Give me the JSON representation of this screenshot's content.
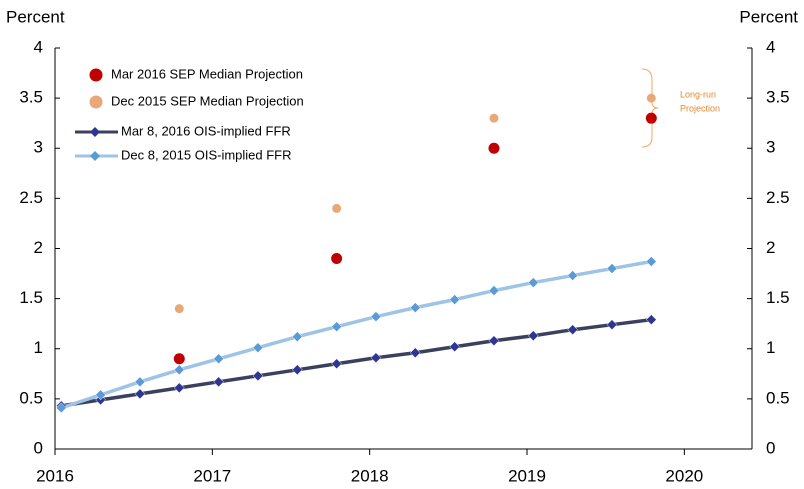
{
  "chart_data": {
    "type": "line",
    "ylabel": "Percent",
    "y2label": "Percent",
    "xlim": [
      2016,
      2020.43
    ],
    "xticks": [
      2016,
      2017,
      2018,
      2019,
      2020
    ],
    "ylim": [
      0,
      4
    ],
    "yticks": [
      0,
      0.5,
      1,
      1.5,
      2,
      2.5,
      3,
      3.5,
      4
    ],
    "y2lim": [
      0,
      4
    ],
    "y2ticks": [
      0,
      0.5,
      1,
      1.5,
      2,
      2.5,
      3,
      3.5,
      4
    ],
    "annotation": [
      "Long-run",
      "Projection"
    ],
    "series": [
      {
        "name": "Mar 2016 SEP Median Projection",
        "style": "markers",
        "color": "#c00000",
        "x": [
          2016.79,
          2017.79,
          2018.79,
          2019.79
        ],
        "values": [
          0.9,
          1.9,
          3.0,
          3.3
        ]
      },
      {
        "name": "Dec 2015 SEP Median Projection",
        "style": "markers",
        "color": "#e9a878",
        "x": [
          2016.79,
          2017.79,
          2018.79,
          2019.79
        ],
        "values": [
          1.4,
          2.4,
          3.3,
          3.5
        ]
      },
      {
        "name": "Mar 8, 2016 OIS-implied FFR",
        "style": "line",
        "color": "#39415e",
        "marker_color": "#2e3592",
        "x": [
          2016.04,
          2016.29,
          2016.54,
          2016.79,
          2017.04,
          2017.29,
          2017.54,
          2017.79,
          2018.04,
          2018.29,
          2018.54,
          2018.79,
          2019.04,
          2019.29,
          2019.54,
          2019.79
        ],
        "values": [
          0.43,
          0.49,
          0.55,
          0.61,
          0.67,
          0.73,
          0.79,
          0.85,
          0.91,
          0.96,
          1.02,
          1.08,
          1.13,
          1.19,
          1.24,
          1.29
        ]
      },
      {
        "name": "Dec 8, 2015 OIS-implied FFR",
        "style": "line",
        "color": "#9dc3e6",
        "marker_color": "#5b9bd5",
        "x": [
          2016.04,
          2016.29,
          2016.54,
          2016.79,
          2017.04,
          2017.29,
          2017.54,
          2017.79,
          2018.04,
          2018.29,
          2018.54,
          2018.79,
          2019.04,
          2019.29,
          2019.54,
          2019.79
        ],
        "values": [
          0.41,
          0.54,
          0.67,
          0.79,
          0.9,
          1.01,
          1.12,
          1.22,
          1.32,
          1.41,
          1.49,
          1.58,
          1.66,
          1.73,
          1.8,
          1.87
        ]
      }
    ]
  }
}
